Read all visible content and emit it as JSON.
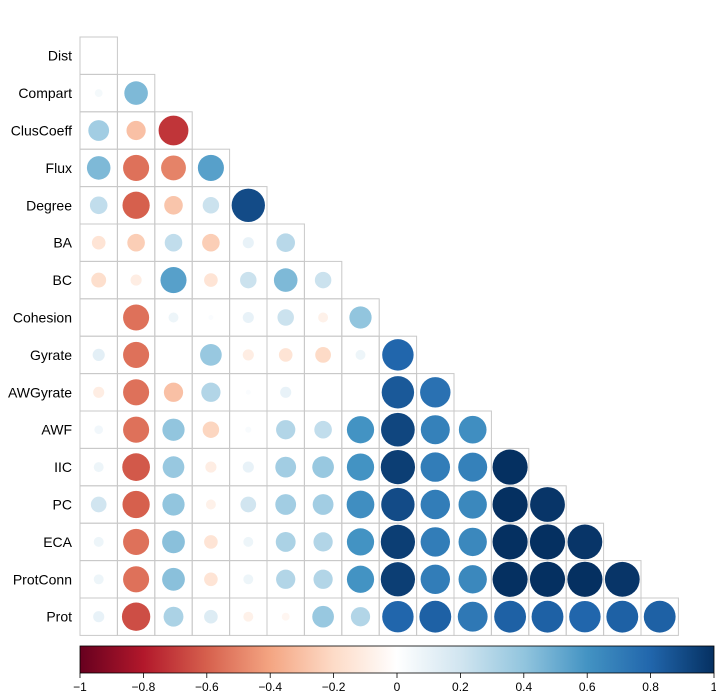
{
  "chart_data": {
    "type": "heatmap",
    "title": "",
    "xlabel": "",
    "ylabel": "",
    "variables": [
      "Dist",
      "Compart",
      "ClusCoeff",
      "Flux",
      "Degree",
      "BA",
      "BC",
      "Cohesion",
      "Gyrate",
      "AWGyrate",
      "AWF",
      "IIC",
      "PC",
      "ECA",
      "ProtConn",
      "Prot"
    ],
    "lower_triangle": [
      [
        0.0
      ],
      [
        0.05,
        0.45
      ],
      [
        0.35,
        -0.3,
        -0.72
      ],
      [
        0.45,
        -0.55,
        -0.5,
        0.55
      ],
      [
        0.25,
        -0.6,
        -0.28,
        0.22,
        0.9
      ],
      [
        -0.15,
        -0.25,
        0.25,
        -0.25,
        0.1,
        0.28
      ],
      [
        -0.18,
        -0.1,
        0.55,
        -0.15,
        0.22,
        0.45,
        0.22
      ],
      [
        0.0,
        -0.55,
        0.08,
        0.02,
        0.1,
        0.22,
        -0.08,
        0.4
      ],
      [
        0.12,
        -0.55,
        0.0,
        0.38,
        -0.1,
        -0.15,
        -0.2,
        0.08,
        0.8
      ],
      [
        -0.1,
        -0.55,
        -0.3,
        0.3,
        0.02,
        0.1,
        0.0,
        0.0,
        0.85,
        0.75
      ],
      [
        0.06,
        -0.55,
        0.4,
        -0.22,
        0.03,
        0.3,
        0.25,
        0.6,
        0.92,
        0.68,
        0.62
      ],
      [
        0.08,
        -0.62,
        0.38,
        -0.1,
        0.1,
        0.35,
        0.38,
        0.6,
        0.95,
        0.7,
        0.68,
        1.0
      ],
      [
        0.2,
        -0.6,
        0.4,
        -0.08,
        0.2,
        0.35,
        0.35,
        0.62,
        0.9,
        0.7,
        0.65,
        1.0,
        0.98
      ],
      [
        0.08,
        -0.55,
        0.42,
        -0.15,
        0.08,
        0.32,
        0.3,
        0.6,
        0.95,
        0.7,
        0.65,
        1.0,
        1.0,
        0.98
      ],
      [
        0.08,
        -0.55,
        0.42,
        -0.15,
        0.08,
        0.3,
        0.3,
        0.6,
        0.95,
        0.7,
        0.65,
        1.0,
        1.0,
        1.0,
        0.98
      ],
      [
        0.1,
        -0.65,
        0.32,
        0.15,
        -0.08,
        -0.05,
        0.38,
        0.3,
        0.8,
        0.82,
        0.72,
        0.82,
        0.82,
        0.8,
        0.82,
        0.82
      ]
    ],
    "colorbar": {
      "ticks": [
        -1,
        -0.8,
        -0.6,
        -0.4,
        -0.2,
        0,
        0.2,
        0.4,
        0.6,
        0.8,
        1
      ],
      "tick_labels": [
        "−1",
        "−0.8",
        "−0.6",
        "−0.4",
        "−0.2",
        "0",
        "0.2",
        "0.4",
        "0.6",
        "0.8",
        "1"
      ],
      "range": [
        -1,
        1
      ],
      "position": "bottom"
    },
    "palette": [
      "#67001f",
      "#b2182b",
      "#d6604d",
      "#f4a582",
      "#fddbc7",
      "#ffffff",
      "#d1e5f0",
      "#92c5de",
      "#4393c3",
      "#2166ac",
      "#053061"
    ],
    "grid": true,
    "grid_color": "#c8c8c8"
  }
}
